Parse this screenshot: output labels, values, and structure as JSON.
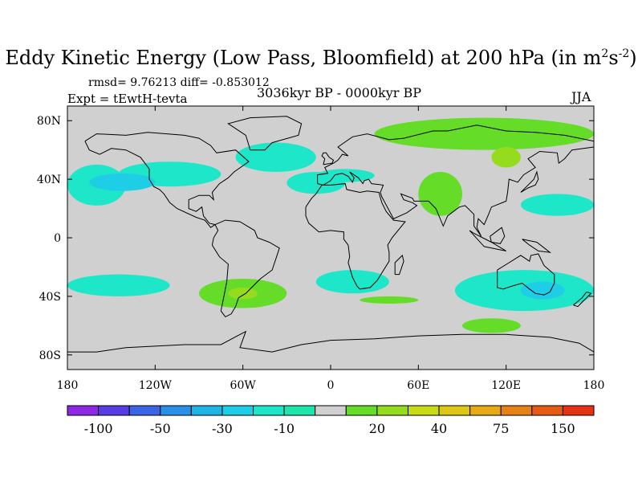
{
  "title": {
    "main": "Eddy Kinetic Energy (Low Pass, Bloomfield) at 200 hPa (in m",
    "exp1": "2",
    "mid": "s",
    "exp2": "-2",
    "close": ")"
  },
  "stats": "rmsd= 9.76213 diff= -0.853012",
  "experiment": "Expt = tEwtH-tevta",
  "period": "3036kyr BP - 0000kyr BP",
  "season": "JJA",
  "map": {
    "lon_range": [
      -180,
      180
    ],
    "lat_range": [
      -90,
      90
    ],
    "background_color": "#d0d0d0",
    "x_ticks": [
      {
        "lon": -180,
        "label": "180"
      },
      {
        "lon": -120,
        "label": "120W"
      },
      {
        "lon": -60,
        "label": "60W"
      },
      {
        "lon": 0,
        "label": "0"
      },
      {
        "lon": 60,
        "label": "60E"
      },
      {
        "lon": 120,
        "label": "120E"
      },
      {
        "lon": 180,
        "label": "180"
      }
    ],
    "y_ticks": [
      {
        "lat": 80,
        "label": "80N"
      },
      {
        "lat": 40,
        "label": "40N"
      },
      {
        "lat": 0,
        "label": "0"
      },
      {
        "lat": -40,
        "label": "40S"
      },
      {
        "lat": -80,
        "label": "80S"
      }
    ]
  },
  "colorbar": {
    "colors": [
      "#8c28e6",
      "#5a3ce6",
      "#3c64e6",
      "#2890e6",
      "#1eb4e6",
      "#1ecde6",
      "#1ee6c8",
      "#1ee6aa",
      "#d0d0d0",
      "#64dc28",
      "#96dc1e",
      "#c8dc14",
      "#dcc814",
      "#e6aa14",
      "#e68214",
      "#e65a14",
      "#e63214"
    ],
    "labels": [
      {
        "boundary": 1,
        "text": "-100"
      },
      {
        "boundary": 3,
        "text": "-50"
      },
      {
        "boundary": 5,
        "text": "-30"
      },
      {
        "boundary": 7,
        "text": "-10"
      },
      {
        "boundary": 10,
        "text": "20"
      },
      {
        "boundary": 12,
        "text": "40"
      },
      {
        "boundary": 14,
        "text": "75"
      },
      {
        "boundary": 16,
        "text": "150"
      }
    ]
  },
  "chart_data": {
    "type": "heatmap",
    "title": "Eddy Kinetic Energy (Low Pass, Bloomfield) at 200 hPa (in m2s-2)",
    "subtitle": "3036kyr BP - 0000kyr BP",
    "season": "JJA",
    "xlim": [
      -180,
      180
    ],
    "ylim": [
      -90,
      90
    ],
    "colorbar_labels": [
      "-100",
      "-50",
      "-30",
      "-10",
      "20",
      "40",
      "75",
      "150"
    ],
    "regions": [
      {
        "lon": [
          -180,
          -140
        ],
        "lat": [
          22,
          50
        ],
        "class": -20
      },
      {
        "lon": [
          -145,
          -75
        ],
        "lat": [
          35,
          52
        ],
        "class": -20
      },
      {
        "lon": [
          -165,
          -120
        ],
        "lat": [
          32,
          44
        ],
        "class": -30
      },
      {
        "lon": [
          -65,
          -10
        ],
        "lat": [
          45,
          65
        ],
        "class": -20
      },
      {
        "lon": [
          -30,
          10
        ],
        "lat": [
          30,
          45
        ],
        "class": -20
      },
      {
        "lon": [
          -10,
          30
        ],
        "lat": [
          38,
          47
        ],
        "class": -20
      },
      {
        "lon": [
          30,
          180
        ],
        "lat": [
          60,
          82
        ],
        "class": 20
      },
      {
        "lon": [
          60,
          90
        ],
        "lat": [
          15,
          45
        ],
        "class": 20
      },
      {
        "lon": [
          110,
          130
        ],
        "lat": [
          48,
          62
        ],
        "class": 30
      },
      {
        "lon": [
          130,
          180
        ],
        "lat": [
          15,
          30
        ],
        "class": -20
      },
      {
        "lon": [
          -180,
          -110
        ],
        "lat": [
          -40,
          -25
        ],
        "class": -20
      },
      {
        "lon": [
          -90,
          -30
        ],
        "lat": [
          -48,
          -28
        ],
        "class": 20
      },
      {
        "lon": [
          -70,
          -50
        ],
        "lat": [
          -42,
          -34
        ],
        "class": 30
      },
      {
        "lon": [
          -10,
          40
        ],
        "lat": [
          -38,
          -22
        ],
        "class": -20
      },
      {
        "lon": [
          85,
          180
        ],
        "lat": [
          -50,
          -22
        ],
        "class": -20
      },
      {
        "lon": [
          130,
          160
        ],
        "lat": [
          -42,
          -30
        ],
        "class": -30
      },
      {
        "lon": [
          90,
          130
        ],
        "lat": [
          -65,
          -55
        ],
        "class": 20
      },
      {
        "lon": [
          20,
          60
        ],
        "lat": [
          -45,
          -40
        ],
        "class": 20
      }
    ]
  }
}
